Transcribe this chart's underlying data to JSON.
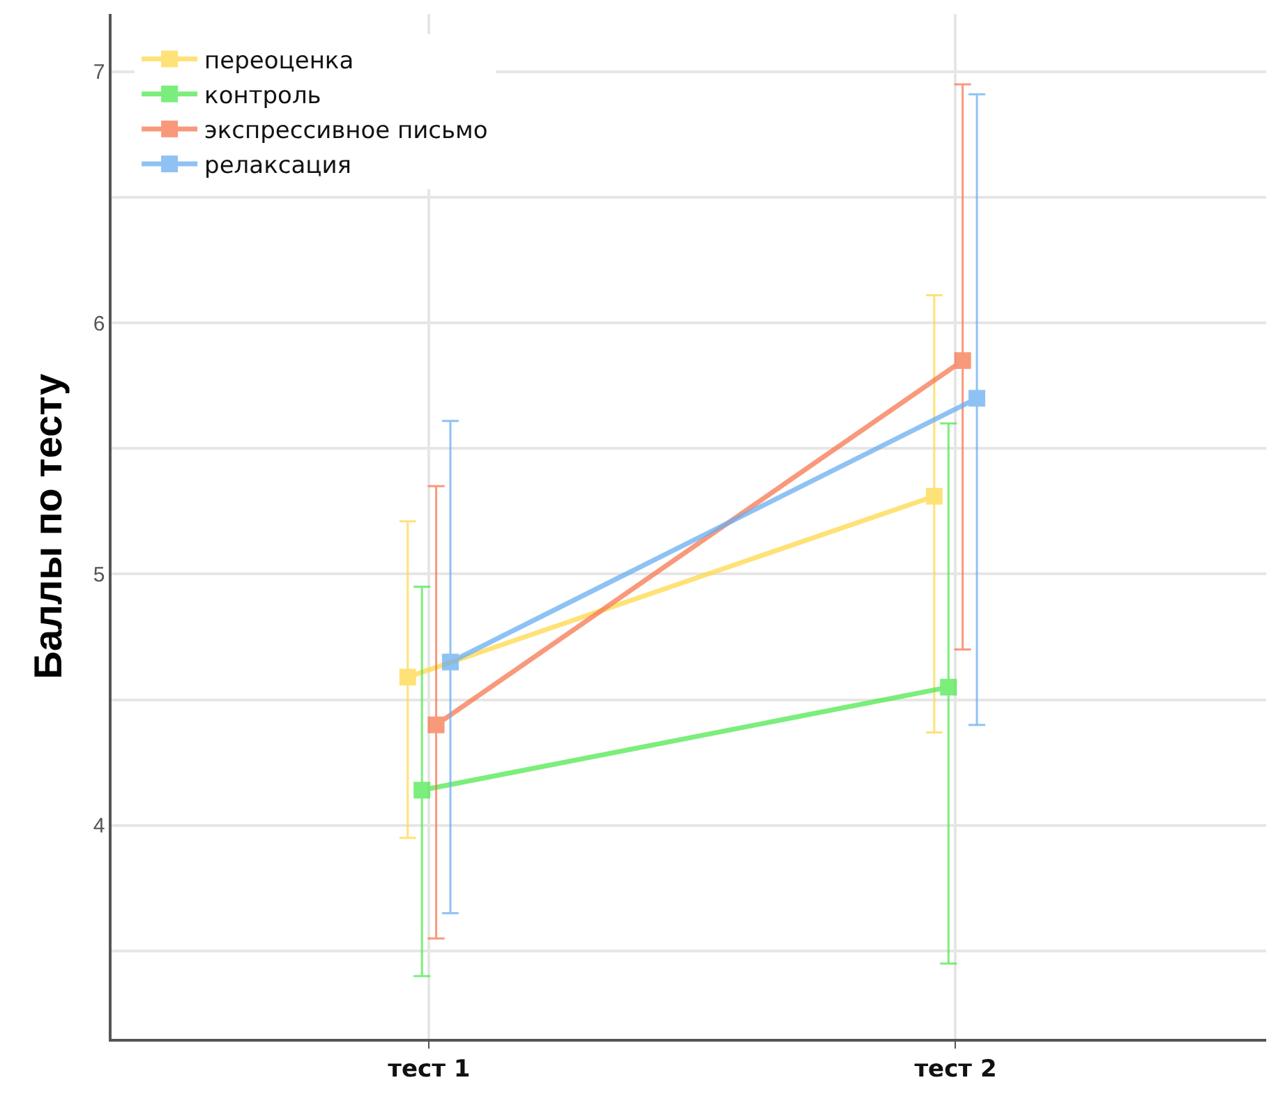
{
  "chart_data": {
    "type": "line",
    "ylabel": "Баллы по тесту",
    "categories": [
      "тест 1",
      "тест 2"
    ],
    "series": [
      {
        "name": "переоценка",
        "color": "#ffd94a",
        "values": [
          4.59,
          5.31
        ],
        "errors": [
          [
            3.95,
            5.21
          ],
          [
            4.37,
            6.11
          ]
        ]
      },
      {
        "name": "контроль",
        "color": "#4fe84f",
        "values": [
          4.14,
          4.55
        ],
        "errors": [
          [
            3.4,
            4.95
          ],
          [
            3.45,
            5.6
          ]
        ]
      },
      {
        "name": "экспрессивное письмо",
        "color": "#f7774f",
        "values": [
          4.4,
          5.85
        ],
        "errors": [
          [
            3.55,
            5.35
          ],
          [
            4.7,
            6.95
          ]
        ]
      },
      {
        "name": "релаксация",
        "color": "#6aaef0",
        "values": [
          4.65,
          5.7
        ],
        "errors": [
          [
            3.65,
            5.61
          ],
          [
            4.4,
            6.91
          ]
        ]
      }
    ],
    "ylim": [
      3.15,
      7.23
    ],
    "yticks": [
      {
        "value": 3.5,
        "label": null
      },
      4,
      {
        "value": 4.5,
        "label": null
      },
      5,
      {
        "value": 5.5,
        "label": null
      },
      6,
      {
        "value": 6.5,
        "label": null
      },
      7
    ],
    "grid": true,
    "legend": "top left",
    "marker": "square",
    "line_style": "solid"
  }
}
